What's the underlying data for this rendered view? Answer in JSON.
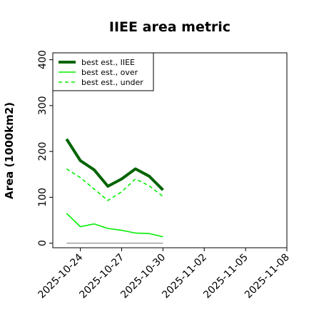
{
  "chart_data": {
    "type": "line",
    "title": "IIEE area metric",
    "xlabel": "",
    "ylabel": "Area (1000km2)",
    "x_ticks": [
      "2025-10-24",
      "2025-10-27",
      "2025-10-30",
      "2025-11-02",
      "2025-11-05",
      "2025-11-08"
    ],
    "xlim": [
      "2025-10-22",
      "2025-11-08"
    ],
    "y_ticks": [
      "0",
      "100",
      "200",
      "300",
      "400"
    ],
    "ylim": [
      -10,
      415
    ],
    "grid": false,
    "legend_position": "top-left",
    "x": [
      "2025-10-23",
      "2025-10-24",
      "2025-10-25",
      "2025-10-26",
      "2025-10-27",
      "2025-10-28",
      "2025-10-29",
      "2025-10-30"
    ],
    "series": [
      {
        "name": "best est., IIEE",
        "color": "#006400",
        "style": "solid",
        "values": [
          227,
          180,
          160,
          124,
          140,
          162,
          146,
          116
        ]
      },
      {
        "name": "best est., over",
        "color": "#00ee00",
        "style": "solid",
        "values": [
          65,
          36,
          42,
          32,
          28,
          22,
          21,
          14
        ]
      },
      {
        "name": "best est., under",
        "color": "#00ee00",
        "style": "dashed",
        "values": [
          162,
          143,
          118,
          93,
          112,
          140,
          125,
          102
        ]
      }
    ],
    "reference_line": {
      "color": "#888888",
      "x_start": "2025-10-23",
      "x_end": "2025-10-30",
      "y": 0
    }
  }
}
